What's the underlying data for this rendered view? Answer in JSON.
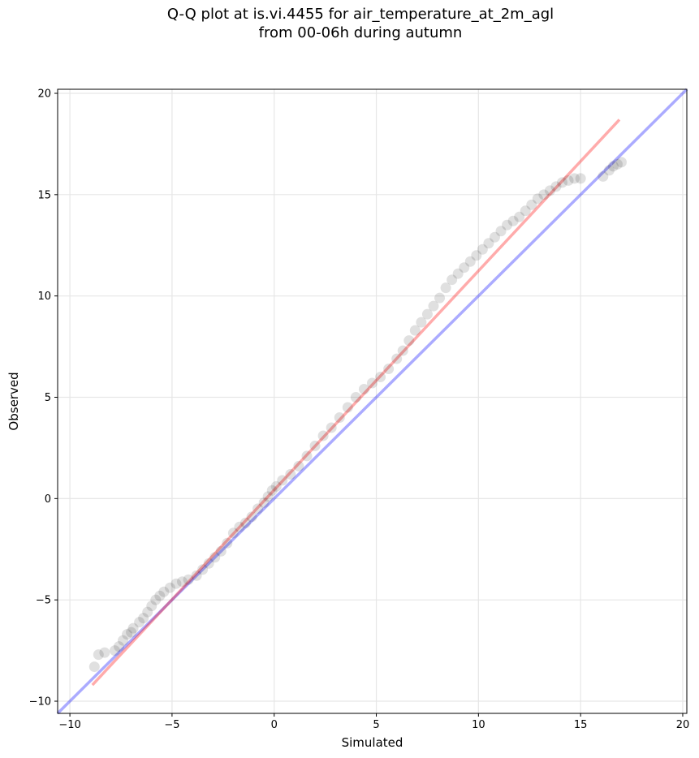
{
  "chart_data": {
    "type": "scatter",
    "title": "Q-Q plot at is.vi.4455 for air_temperature_at_2m_agl",
    "subtitle": "from 00-06h during autumn",
    "xlabel": "Simulated",
    "ylabel": "Observed",
    "xlim": [
      -10.6,
      20.2
    ],
    "ylim": [
      -10.6,
      20.2
    ],
    "xticks": [
      -10,
      -5,
      0,
      5,
      10,
      15,
      20
    ],
    "yticks": [
      -10,
      -5,
      0,
      5,
      10,
      15,
      20
    ],
    "xtick_labels": [
      "−10",
      "−5",
      "0",
      "5",
      "10",
      "15",
      "20"
    ],
    "ytick_labels": [
      "−10",
      "−5",
      "0",
      "5",
      "10",
      "15",
      "20"
    ],
    "grid": true,
    "colors": {
      "points": "#000000",
      "one_to_one": "#0000ff",
      "fit": "#ff0000"
    },
    "reference_lines": [
      {
        "x": [
          -10.6,
          20.2
        ],
        "y": [
          -10.6,
          20.2
        ]
      },
      {
        "x": [
          -8.9,
          16.9
        ],
        "y": [
          -9.2,
          18.7
        ]
      }
    ],
    "points": {
      "x": [
        -8.8,
        -8.6,
        -8.3,
        -7.8,
        -7.6,
        -7.4,
        -7.2,
        -7.0,
        -6.9,
        -6.6,
        -6.4,
        -6.2,
        -6.0,
        -5.8,
        -5.6,
        -5.4,
        -5.1,
        -4.8,
        -4.5,
        -4.2,
        -3.8,
        -3.5,
        -3.2,
        -2.9,
        -2.6,
        -2.3,
        -2.0,
        -1.7,
        -1.4,
        -1.1,
        -0.8,
        -0.5,
        -0.3,
        -0.1,
        0.1,
        0.4,
        0.8,
        1.2,
        1.6,
        2.0,
        2.4,
        2.8,
        3.2,
        3.6,
        4.0,
        4.4,
        4.8,
        5.2,
        5.6,
        6.0,
        6.3,
        6.6,
        6.9,
        7.2,
        7.5,
        7.8,
        8.1,
        8.4,
        8.7,
        9.0,
        9.3,
        9.6,
        9.9,
        10.2,
        10.5,
        10.8,
        11.1,
        11.4,
        11.7,
        12.0,
        12.3,
        12.6,
        12.9,
        13.2,
        13.5,
        13.8,
        14.1,
        14.4,
        14.7,
        15.0,
        16.1,
        16.4,
        16.6,
        16.8,
        17.0
      ],
      "y": [
        -8.3,
        -7.7,
        -7.6,
        -7.5,
        -7.3,
        -7.0,
        -6.7,
        -6.6,
        -6.4,
        -6.1,
        -5.9,
        -5.6,
        -5.3,
        -5.0,
        -4.8,
        -4.6,
        -4.4,
        -4.2,
        -4.1,
        -4.0,
        -3.8,
        -3.5,
        -3.2,
        -2.9,
        -2.6,
        -2.2,
        -1.7,
        -1.4,
        -1.2,
        -0.9,
        -0.5,
        -0.2,
        0.1,
        0.4,
        0.6,
        0.9,
        1.2,
        1.6,
        2.1,
        2.6,
        3.1,
        3.5,
        4.0,
        4.5,
        5.0,
        5.4,
        5.7,
        6.0,
        6.4,
        6.9,
        7.3,
        7.8,
        8.3,
        8.7,
        9.1,
        9.5,
        9.9,
        10.4,
        10.8,
        11.1,
        11.4,
        11.7,
        12.0,
        12.3,
        12.6,
        12.9,
        13.2,
        13.5,
        13.7,
        13.9,
        14.2,
        14.5,
        14.8,
        15.0,
        15.2,
        15.4,
        15.6,
        15.7,
        15.8,
        15.8,
        15.9,
        16.2,
        16.4,
        16.5,
        16.6
      ]
    }
  }
}
